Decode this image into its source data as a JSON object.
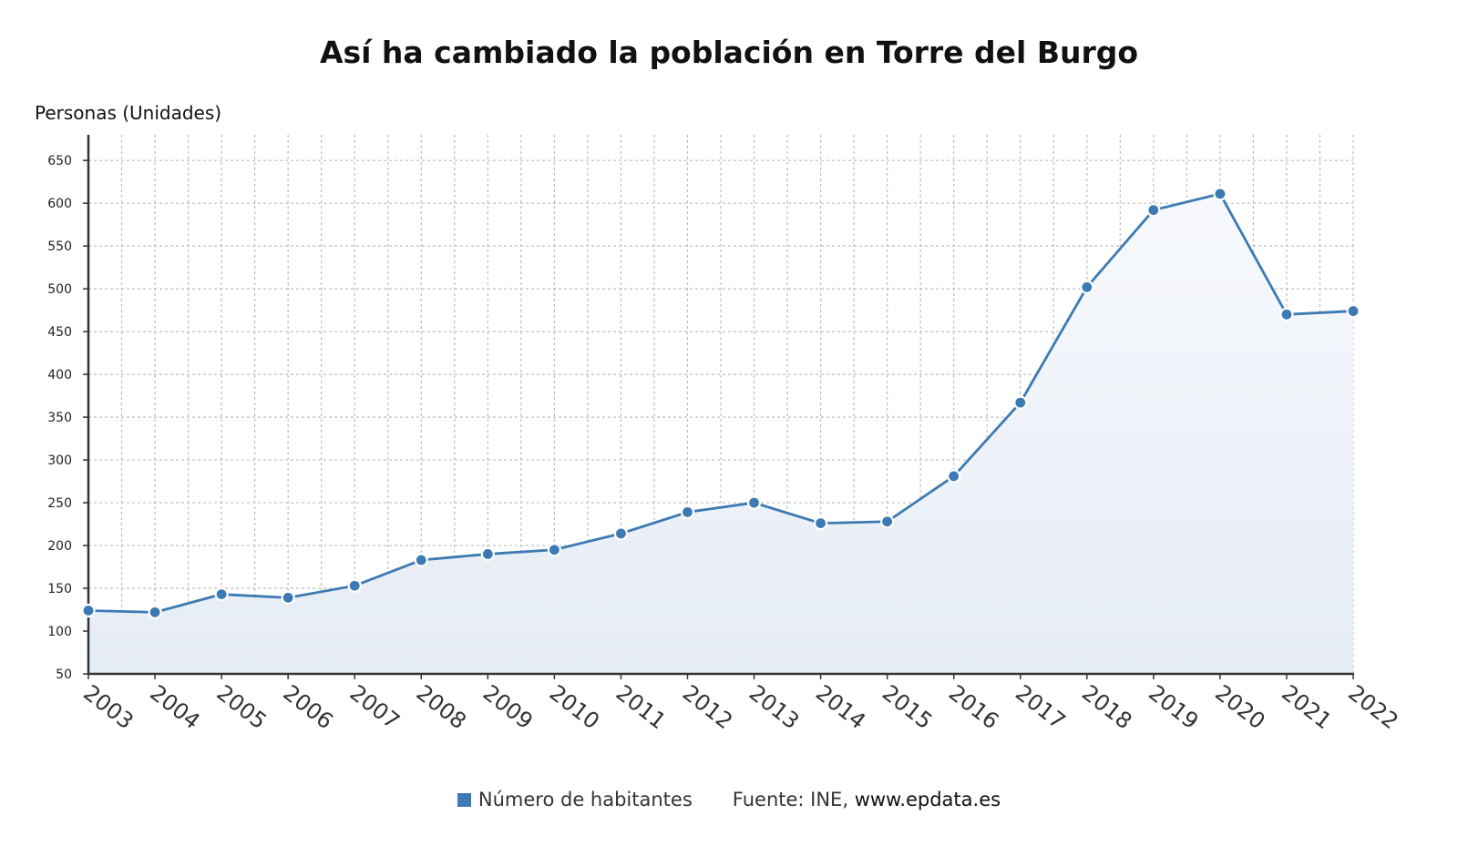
{
  "title": "Así ha cambiado la población en Torre del Burgo",
  "colors": {
    "line": "#3d7ab3",
    "grid": "#bdbdbd",
    "axis": "#333333"
  },
  "legend": {
    "series_label": "Número de habitantes",
    "source_prefix": "Fuente: INE,",
    "source_site": "www.epdata.es"
  },
  "chart_data": {
    "type": "area",
    "title": "Así ha cambiado la población en Torre del Burgo",
    "ylabel": "Personas (Unidades)",
    "xlabel": "",
    "ylim": [
      50,
      680
    ],
    "yticks": [
      50,
      100,
      150,
      200,
      250,
      300,
      350,
      400,
      450,
      500,
      550,
      600,
      650
    ],
    "grid": true,
    "legend_position": "bottom",
    "categories": [
      "2003",
      "2004",
      "2005",
      "2006",
      "2007",
      "2008",
      "2009",
      "2010",
      "2011",
      "2012",
      "2013",
      "2014",
      "2015",
      "2016",
      "2017",
      "2018",
      "2019",
      "2020",
      "2021",
      "2022"
    ],
    "series": [
      {
        "name": "Número de habitantes",
        "values": [
          124,
          122,
          143,
          139,
          153,
          183,
          190,
          195,
          214,
          239,
          250,
          226,
          228,
          281,
          367,
          502,
          592,
          611,
          470,
          474
        ]
      }
    ]
  }
}
